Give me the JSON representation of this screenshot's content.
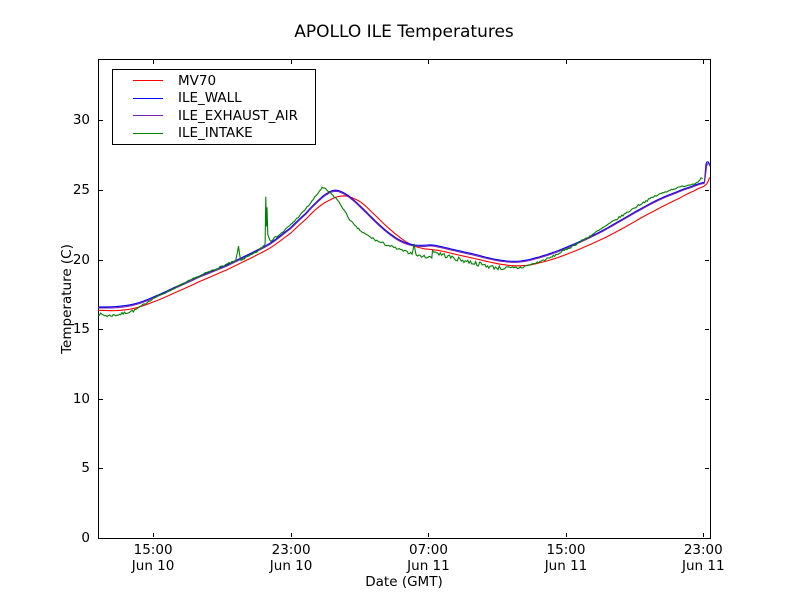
{
  "chart_data": {
    "type": "line",
    "title": "APOLLO ILE Temperatures",
    "xlabel": "Date (GMT)",
    "ylabel": "Temperature (C)",
    "ylim": [
      0,
      34.4
    ],
    "grid": false,
    "legend_position": "upper-left",
    "y_ticks": [
      0,
      5,
      10,
      15,
      20,
      25,
      30
    ],
    "x_ticks": [
      {
        "frac": 0.09,
        "time": "15:00",
        "date": "Jun 10"
      },
      {
        "frac": 0.3155,
        "time": "23:00",
        "date": "Jun 10"
      },
      {
        "frac": 0.54,
        "time": "07:00",
        "date": "Jun 11"
      },
      {
        "frac": 0.7647,
        "time": "15:00",
        "date": "Jun 11"
      },
      {
        "frac": 0.989,
        "time": "23:00",
        "date": "Jun 11"
      }
    ],
    "series": [
      {
        "name": "MV70",
        "color": "#ff0000",
        "points": [
          [
            0,
            16.35
          ],
          [
            0.03,
            16.33
          ],
          [
            0.06,
            16.5
          ],
          [
            0.09,
            16.95
          ],
          [
            0.125,
            17.6
          ],
          [
            0.165,
            18.4
          ],
          [
            0.21,
            19.25
          ],
          [
            0.25,
            20.1
          ],
          [
            0.282,
            20.85
          ],
          [
            0.315,
            21.9
          ],
          [
            0.34,
            22.9
          ],
          [
            0.36,
            23.75
          ],
          [
            0.38,
            24.3
          ],
          [
            0.396,
            24.55
          ],
          [
            0.41,
            24.5
          ],
          [
            0.43,
            24.1
          ],
          [
            0.45,
            23.3
          ],
          [
            0.47,
            22.45
          ],
          [
            0.49,
            21.7
          ],
          [
            0.51,
            21.1
          ],
          [
            0.53,
            20.8
          ],
          [
            0.545,
            20.72
          ],
          [
            0.56,
            20.62
          ],
          [
            0.58,
            20.42
          ],
          [
            0.6,
            20.22
          ],
          [
            0.62,
            20.02
          ],
          [
            0.64,
            19.82
          ],
          [
            0.66,
            19.65
          ],
          [
            0.68,
            19.55
          ],
          [
            0.7,
            19.58
          ],
          [
            0.72,
            19.75
          ],
          [
            0.745,
            20.05
          ],
          [
            0.77,
            20.45
          ],
          [
            0.8,
            21
          ],
          [
            0.83,
            21.6
          ],
          [
            0.86,
            22.3
          ],
          [
            0.89,
            23.05
          ],
          [
            0.92,
            23.75
          ],
          [
            0.95,
            24.4
          ],
          [
            0.975,
            24.95
          ],
          [
            0.99,
            25.25
          ],
          [
            0.995,
            25.45
          ],
          [
            1,
            25.9
          ]
        ]
      },
      {
        "name": "ILE_WALL",
        "color": "#0000ff",
        "points": [
          [
            0,
            16.6
          ],
          [
            0.03,
            16.62
          ],
          [
            0.06,
            16.82
          ],
          [
            0.09,
            17.3
          ],
          [
            0.125,
            18
          ],
          [
            0.165,
            18.8
          ],
          [
            0.21,
            19.6
          ],
          [
            0.25,
            20.45
          ],
          [
            0.282,
            21.2
          ],
          [
            0.315,
            22.3
          ],
          [
            0.34,
            23.35
          ],
          [
            0.36,
            24.25
          ],
          [
            0.376,
            24.8
          ],
          [
            0.386,
            24.97
          ],
          [
            0.396,
            24.9
          ],
          [
            0.413,
            24.45
          ],
          [
            0.433,
            23.65
          ],
          [
            0.453,
            22.78
          ],
          [
            0.473,
            22
          ],
          [
            0.493,
            21.4
          ],
          [
            0.513,
            21.08
          ],
          [
            0.53,
            21.02
          ],
          [
            0.545,
            21.05
          ],
          [
            0.558,
            20.95
          ],
          [
            0.578,
            20.75
          ],
          [
            0.598,
            20.55
          ],
          [
            0.618,
            20.35
          ],
          [
            0.638,
            20.12
          ],
          [
            0.658,
            19.95
          ],
          [
            0.678,
            19.87
          ],
          [
            0.695,
            19.92
          ],
          [
            0.715,
            20.12
          ],
          [
            0.74,
            20.45
          ],
          [
            0.765,
            20.88
          ],
          [
            0.795,
            21.45
          ],
          [
            0.825,
            22.1
          ],
          [
            0.855,
            22.85
          ],
          [
            0.885,
            23.6
          ],
          [
            0.915,
            24.3
          ],
          [
            0.945,
            24.85
          ],
          [
            0.97,
            25.25
          ],
          [
            0.988,
            25.52
          ],
          [
            0.991,
            25.6
          ],
          [
            0.9935,
            26.85
          ],
          [
            0.997,
            27
          ],
          [
            1,
            26.8
          ]
        ]
      },
      {
        "name": "ILE_EXHAUST_AIR",
        "color": "#7b22aa",
        "points": [
          [
            0,
            16.52
          ],
          [
            0.03,
            16.54
          ],
          [
            0.06,
            16.74
          ],
          [
            0.09,
            17.22
          ],
          [
            0.125,
            17.92
          ],
          [
            0.165,
            18.72
          ],
          [
            0.21,
            19.52
          ],
          [
            0.25,
            20.37
          ],
          [
            0.282,
            21.12
          ],
          [
            0.315,
            22.22
          ],
          [
            0.34,
            23.27
          ],
          [
            0.36,
            24.17
          ],
          [
            0.376,
            24.72
          ],
          [
            0.386,
            24.89
          ],
          [
            0.396,
            24.82
          ],
          [
            0.413,
            24.37
          ],
          [
            0.433,
            23.57
          ],
          [
            0.453,
            22.7
          ],
          [
            0.473,
            21.92
          ],
          [
            0.493,
            21.32
          ],
          [
            0.513,
            21
          ],
          [
            0.53,
            20.94
          ],
          [
            0.545,
            20.97
          ],
          [
            0.558,
            20.87
          ],
          [
            0.578,
            20.67
          ],
          [
            0.598,
            20.47
          ],
          [
            0.618,
            20.27
          ],
          [
            0.638,
            20.05
          ],
          [
            0.658,
            19.88
          ],
          [
            0.678,
            19.8
          ],
          [
            0.695,
            19.85
          ],
          [
            0.715,
            20.05
          ],
          [
            0.74,
            20.38
          ],
          [
            0.765,
            20.8
          ],
          [
            0.795,
            21.38
          ],
          [
            0.825,
            22.03
          ],
          [
            0.855,
            22.78
          ],
          [
            0.885,
            23.53
          ],
          [
            0.915,
            24.23
          ],
          [
            0.945,
            24.78
          ],
          [
            0.97,
            25.18
          ],
          [
            0.988,
            25.45
          ],
          [
            0.991,
            25.55
          ],
          [
            0.9945,
            26.7
          ],
          [
            0.998,
            26.88
          ],
          [
            1,
            26.7
          ]
        ]
      },
      {
        "name": "ILE_INTAKE",
        "color": "#008000",
        "noise": {
          "seed": 7,
          "regions": [
            {
              "from": 0,
              "to": 0.06,
              "amp": 0.1
            },
            {
              "from": 0.06,
              "to": 0.44,
              "amp": 0.06
            },
            {
              "from": 0.44,
              "to": 0.55,
              "amp": 0.09
            },
            {
              "from": 0.55,
              "to": 0.7,
              "amp": 0.16
            },
            {
              "from": 0.7,
              "to": 0.93,
              "amp": 0.07
            },
            {
              "from": 0.93,
              "to": 1.0,
              "amp": 0.05
            }
          ]
        },
        "points": [
          [
            0,
            16.1
          ],
          [
            0.015,
            15.95
          ],
          [
            0.035,
            16.05
          ],
          [
            0.06,
            16.35
          ],
          [
            0.09,
            17.2
          ],
          [
            0.125,
            17.95
          ],
          [
            0.165,
            18.8
          ],
          [
            0.21,
            19.65
          ],
          [
            0.225,
            19.9
          ],
          [
            0.2295,
            20.9
          ],
          [
            0.233,
            19.95
          ],
          [
            0.245,
            20.2
          ],
          [
            0.258,
            20.5
          ],
          [
            0.27,
            20.95
          ],
          [
            0.273,
            21.1
          ],
          [
            0.2742,
            24.55
          ],
          [
            0.2752,
            22.4
          ],
          [
            0.2762,
            23.75
          ],
          [
            0.2775,
            21.8
          ],
          [
            0.282,
            21.35
          ],
          [
            0.3,
            21.9
          ],
          [
            0.315,
            22.5
          ],
          [
            0.335,
            23.4
          ],
          [
            0.35,
            24.2
          ],
          [
            0.36,
            24.8
          ],
          [
            0.366,
            25.15
          ],
          [
            0.372,
            25.05
          ],
          [
            0.38,
            24.75
          ],
          [
            0.39,
            24.35
          ],
          [
            0.4,
            23.7
          ],
          [
            0.41,
            22.95
          ],
          [
            0.42,
            22.4
          ],
          [
            0.432,
            21.95
          ],
          [
            0.445,
            21.6
          ],
          [
            0.46,
            21.25
          ],
          [
            0.475,
            21
          ],
          [
            0.49,
            20.75
          ],
          [
            0.503,
            20.55
          ],
          [
            0.513,
            20.45
          ],
          [
            0.5165,
            21.05
          ],
          [
            0.52,
            20.3
          ],
          [
            0.535,
            20.2
          ],
          [
            0.5455,
            20.15
          ],
          [
            0.5465,
            20.65
          ],
          [
            0.555,
            20.45
          ],
          [
            0.57,
            20.25
          ],
          [
            0.585,
            20.05
          ],
          [
            0.6,
            19.9
          ],
          [
            0.615,
            19.75
          ],
          [
            0.63,
            19.6
          ],
          [
            0.645,
            19.45
          ],
          [
            0.66,
            19.38
          ],
          [
            0.675,
            19.35
          ],
          [
            0.69,
            19.42
          ],
          [
            0.705,
            19.6
          ],
          [
            0.722,
            19.85
          ],
          [
            0.74,
            20.15
          ],
          [
            0.76,
            20.6
          ],
          [
            0.785,
            21.2
          ],
          [
            0.81,
            21.85
          ],
          [
            0.835,
            22.55
          ],
          [
            0.86,
            23.25
          ],
          [
            0.885,
            23.95
          ],
          [
            0.91,
            24.55
          ],
          [
            0.935,
            25
          ],
          [
            0.955,
            25.25
          ],
          [
            0.97,
            25.4
          ],
          [
            0.98,
            25.55
          ],
          [
            0.985,
            25.85
          ],
          [
            0.988,
            25.8
          ]
        ]
      }
    ]
  },
  "colors": {
    "axis": "#000000",
    "text": "#000000",
    "background": "#ffffff"
  }
}
